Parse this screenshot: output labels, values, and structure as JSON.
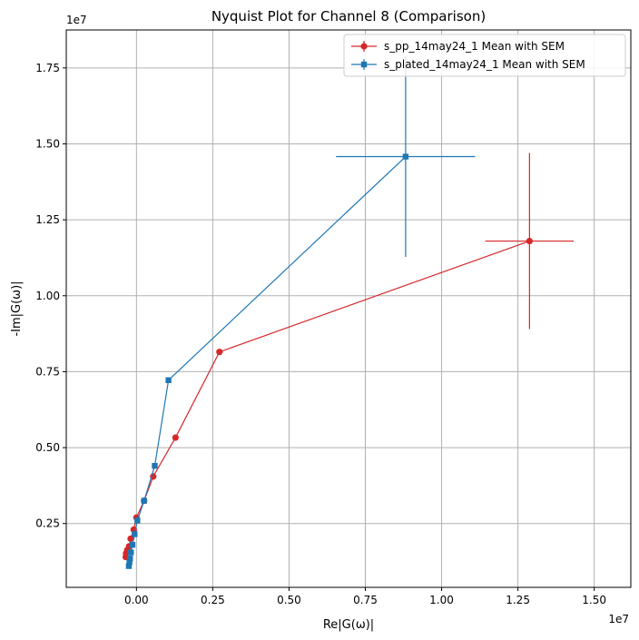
{
  "chart_data": {
    "type": "scatter",
    "title": "Nyquist Plot for Channel 8 (Comparison)",
    "xlabel": "Re|G(ω)|",
    "ylabel": "-Im|G(ω)|",
    "x_offset_label": "1e7",
    "y_offset_label": "1e7",
    "xlim": [
      -0.23,
      1.62
    ],
    "ylim": [
      0.04,
      1.875
    ],
    "x_ticks": [
      0.0,
      0.25,
      0.5,
      0.75,
      1.0,
      1.25,
      1.5
    ],
    "x_tick_labels": [
      "0.00",
      "0.25",
      "0.50",
      "0.75",
      "1.00",
      "1.25",
      "1.50"
    ],
    "y_ticks": [
      0.25,
      0.5,
      0.75,
      1.0,
      1.25,
      1.5,
      1.75
    ],
    "y_tick_labels": [
      "0.25",
      "0.50",
      "0.75",
      "1.00",
      "1.25",
      "1.50",
      "1.75"
    ],
    "grid": true,
    "legend_position": "top-right",
    "series": [
      {
        "name": "s_pp_14may24_1 Mean with SEM",
        "color": "#d62728",
        "marker": "circle",
        "x": [
          -0.035,
          -0.034,
          -0.03,
          -0.024,
          -0.019,
          -0.009,
          0.0,
          0.025,
          0.055,
          0.128,
          0.272,
          1.288
        ],
        "y": [
          0.14,
          0.152,
          0.163,
          0.175,
          0.2,
          0.23,
          0.27,
          0.325,
          0.405,
          0.533,
          0.815,
          1.18
        ],
        "xerr": [
          0,
          0,
          0,
          0,
          0,
          0,
          0,
          0,
          0,
          0,
          0,
          0.145
        ],
        "yerr": [
          0,
          0,
          0,
          0,
          0,
          0,
          0,
          0,
          0,
          0,
          0,
          0.29
        ]
      },
      {
        "name": "s_plated_14may24_1 Mean with SEM",
        "color": "#1f77b4",
        "marker": "square",
        "x": [
          -0.025,
          -0.023,
          -0.021,
          -0.018,
          -0.013,
          -0.006,
          0.003,
          0.025,
          0.06,
          0.105,
          0.882
        ],
        "y": [
          0.11,
          0.122,
          0.135,
          0.155,
          0.18,
          0.215,
          0.26,
          0.325,
          0.44,
          0.722,
          1.458
        ],
        "xerr": [
          0,
          0,
          0,
          0,
          0,
          0,
          0,
          0,
          0,
          0,
          0.228
        ],
        "yerr": [
          0,
          0,
          0,
          0,
          0,
          0,
          0,
          0,
          0,
          0,
          0.33
        ]
      }
    ]
  }
}
